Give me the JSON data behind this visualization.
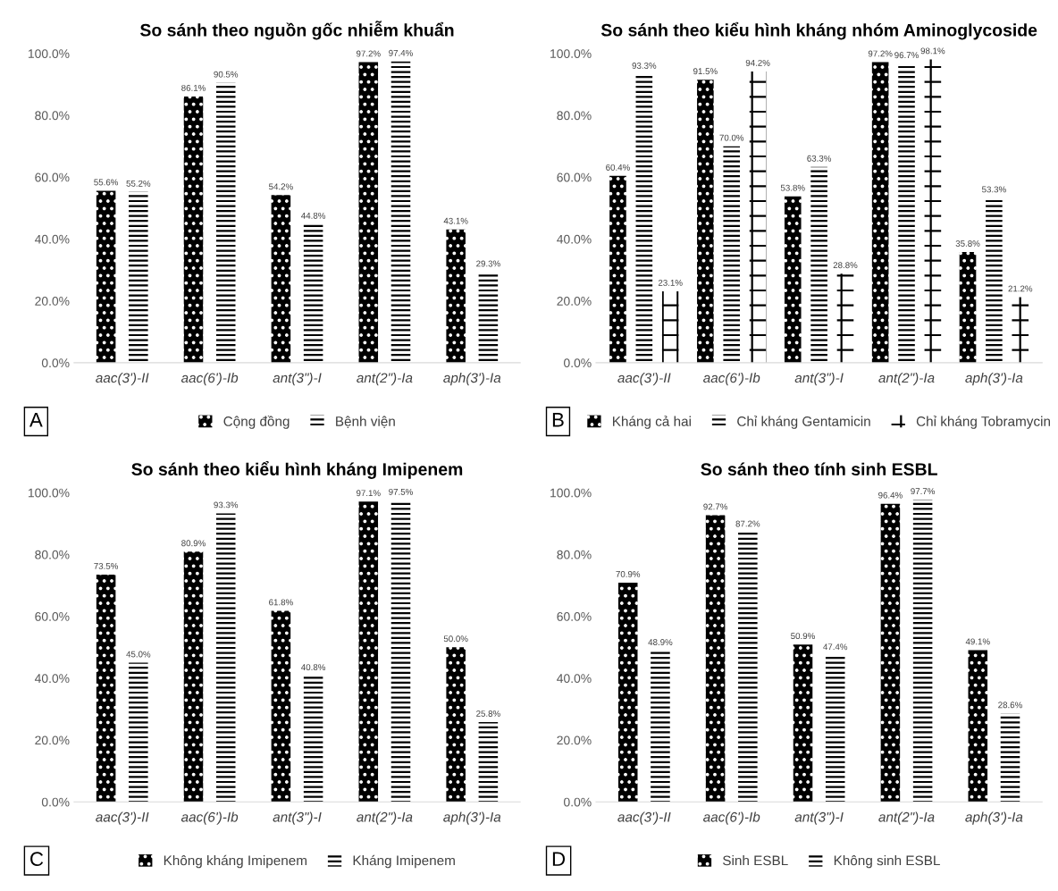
{
  "chart_data": [
    {
      "type": "bar",
      "title": "So sánh theo nguồn gốc nhiễm khuẩn",
      "categories": [
        "aac(3')-II",
        "aac(6')-Ib",
        "ant(3\")-I",
        "ant(2\")-Ia",
        "aph(3')-Ia"
      ],
      "ylim": [
        0,
        100
      ],
      "yticks": [
        {
          "value": 0,
          "label": "0.0%"
        },
        {
          "value": 20,
          "label": "20.0%"
        },
        {
          "value": 40,
          "label": "40.0%"
        },
        {
          "value": 60,
          "label": "60.0%"
        },
        {
          "value": 80,
          "label": "80.0%"
        },
        {
          "value": 100,
          "label": "100.0%"
        }
      ],
      "legend": "bottom",
      "grid": false,
      "annotations": [
        "A"
      ],
      "series": [
        {
          "name": "Cộng đồng",
          "color": "#000000",
          "values": [
            55.6,
            86.1,
            54.2,
            97.2,
            43.1
          ],
          "value_labels": [
            "55.6%",
            "86.1%",
            "54.2%",
            "97.2%",
            "43.1%"
          ]
        },
        {
          "name": "Bệnh viện",
          "color": "#000000",
          "values": [
            55.2,
            90.5,
            44.8,
            97.4,
            29.3
          ],
          "value_labels": [
            "55.2%",
            "90.5%",
            "44.8%",
            "97.4%",
            "29.3%"
          ]
        }
      ]
    },
    {
      "type": "bar",
      "title": "So sánh theo kiểu hình kháng nhóm Aminoglycoside",
      "categories": [
        "aac(3')-II",
        "aac(6')-Ib",
        "ant(3\")-I",
        "ant(2\")-Ia",
        "aph(3')-Ia"
      ],
      "ylim": [
        0,
        100
      ],
      "yticks": [
        {
          "value": 0,
          "label": "0.0%"
        },
        {
          "value": 20,
          "label": "20.0%"
        },
        {
          "value": 40,
          "label": "40.0%"
        },
        {
          "value": 60,
          "label": "60.0%"
        },
        {
          "value": 80,
          "label": "80.0%"
        },
        {
          "value": 100,
          "label": "100.0%"
        }
      ],
      "legend": "bottom",
      "grid": false,
      "annotations": [
        "B"
      ],
      "series": [
        {
          "name": "Kháng cả hai",
          "color": "#000000",
          "values": [
            60.4,
            91.5,
            53.8,
            97.2,
            35.8
          ],
          "value_labels": [
            "60.4%",
            "91.5%",
            "53.8%",
            "97.2%",
            "35.8%"
          ]
        },
        {
          "name": "Chỉ kháng Gentamicin",
          "color": "#000000",
          "values": [
            93.3,
            70.0,
            63.3,
            96.7,
            53.3
          ],
          "value_labels": [
            "93.3%",
            "70.0%",
            "63.3%",
            "96.7%",
            "53.3%"
          ]
        },
        {
          "name": "Chỉ kháng Tobramycin",
          "color": "#000000",
          "values": [
            23.1,
            94.2,
            28.8,
            98.1,
            21.2
          ],
          "value_labels": [
            "23.1%",
            "94.2%",
            "28.8%",
            "98.1%",
            "21.2%"
          ]
        }
      ]
    },
    {
      "type": "bar",
      "title": "So sánh theo kiểu hình kháng Imipenem",
      "categories": [
        "aac(3')-II",
        "aac(6')-Ib",
        "ant(3\")-I",
        "ant(2\")-Ia",
        "aph(3')-Ia"
      ],
      "ylim": [
        0,
        100
      ],
      "yticks": [
        {
          "value": 0,
          "label": "0.0%"
        },
        {
          "value": 20,
          "label": "20.0%"
        },
        {
          "value": 40,
          "label": "40.0%"
        },
        {
          "value": 60,
          "label": "60.0%"
        },
        {
          "value": 80,
          "label": "80.0%"
        },
        {
          "value": 100,
          "label": "100.0%"
        }
      ],
      "legend": "bottom",
      "grid": false,
      "annotations": [
        "C"
      ],
      "series": [
        {
          "name": "Không kháng Imipenem",
          "color": "#000000",
          "values": [
            73.5,
            80.9,
            61.8,
            97.1,
            50.0
          ],
          "value_labels": [
            "73.5%",
            "80.9%",
            "61.8%",
            "97.1%",
            "50.0%"
          ]
        },
        {
          "name": "Kháng Imipenem",
          "color": "#000000",
          "values": [
            45.0,
            93.3,
            40.8,
            97.5,
            25.8
          ],
          "value_labels": [
            "45.0%",
            "93.3%",
            "40.8%",
            "97.5%",
            "25.8%"
          ]
        }
      ]
    },
    {
      "type": "bar",
      "title": "So sánh theo tính sinh ESBL",
      "categories": [
        "aac(3')-II",
        "aac(6')-Ib",
        "ant(3\")-I",
        "ant(2\")-Ia",
        "aph(3')-Ia"
      ],
      "ylim": [
        0,
        100
      ],
      "yticks": [
        {
          "value": 0,
          "label": "0.0%"
        },
        {
          "value": 20,
          "label": "20.0%"
        },
        {
          "value": 40,
          "label": "40.0%"
        },
        {
          "value": 60,
          "label": "60.0%"
        },
        {
          "value": 80,
          "label": "80.0%"
        },
        {
          "value": 100,
          "label": "100.0%"
        }
      ],
      "legend": "bottom",
      "grid": false,
      "annotations": [
        "D"
      ],
      "series": [
        {
          "name": "Sinh ESBL",
          "color": "#000000",
          "values": [
            70.9,
            92.7,
            50.9,
            96.4,
            49.1
          ],
          "value_labels": [
            "70.9%",
            "92.7%",
            "50.9%",
            "96.4%",
            "49.1%"
          ]
        },
        {
          "name": "Không sinh ESBL",
          "color": "#000000",
          "values": [
            48.9,
            87.2,
            47.4,
            97.7,
            28.6
          ],
          "value_labels": [
            "48.9%",
            "87.2%",
            "47.4%",
            "97.7%",
            "28.6%"
          ]
        }
      ]
    }
  ]
}
